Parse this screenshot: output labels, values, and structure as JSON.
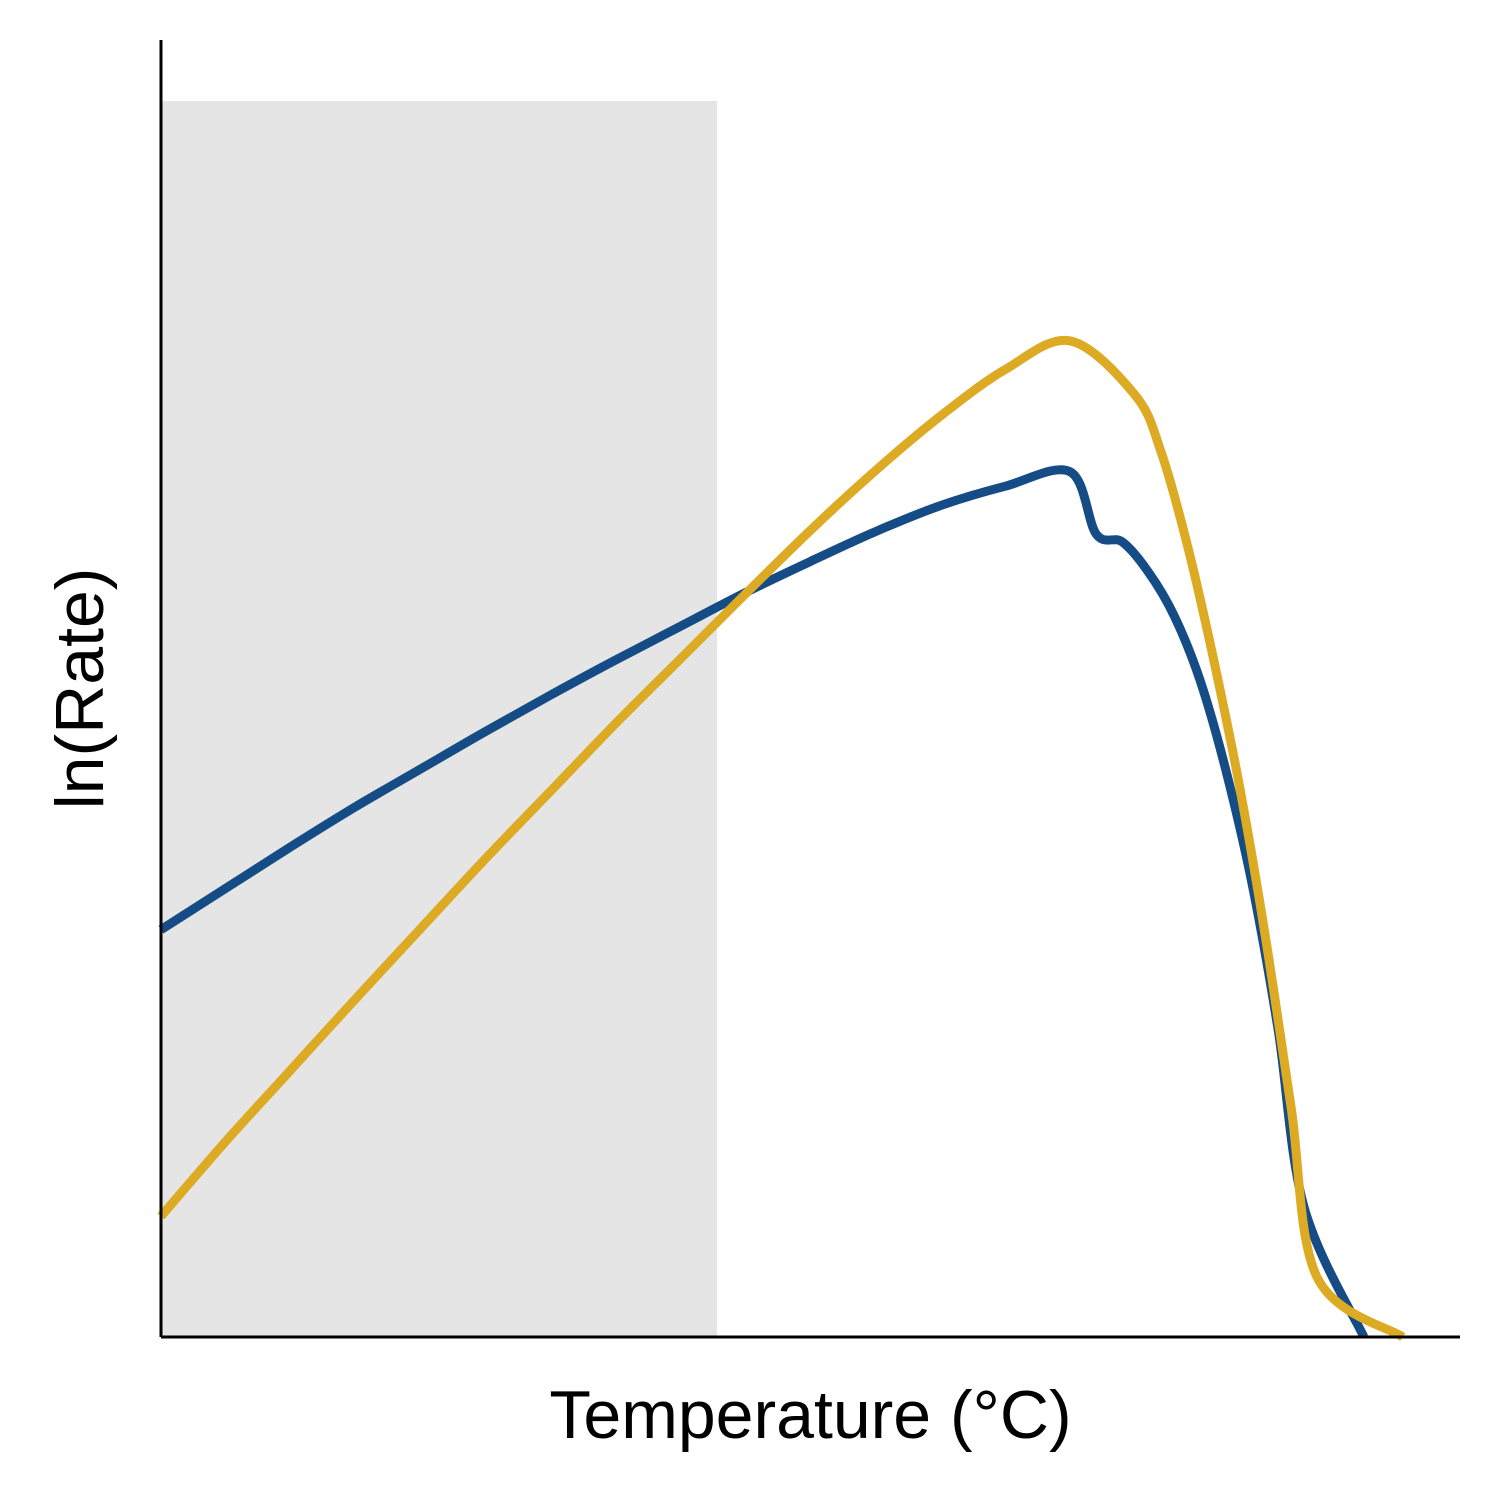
{
  "chart_data": {
    "type": "line",
    "title": "",
    "xlabel": "Temperature (°C)",
    "ylabel": "ln(Rate)",
    "xlim": [
      0,
      100
    ],
    "ylim": [
      0,
      100
    ],
    "grid": false,
    "legend": "none",
    "axis_ticks": "none",
    "shaded_region": {
      "x": [
        0,
        42.8
      ],
      "y": [
        0,
        95.3
      ],
      "color": "#e5e5e5"
    },
    "series": [
      {
        "color": "#154c85",
        "points": [
          [
            0,
            31.4
          ],
          [
            5,
            34.6
          ],
          [
            10,
            37.8
          ],
          [
            15,
            40.9
          ],
          [
            20,
            43.8
          ],
          [
            25,
            46.7
          ],
          [
            30,
            49.5
          ],
          [
            35,
            52.2
          ],
          [
            40,
            54.8
          ],
          [
            45,
            57.4
          ],
          [
            50,
            59.8
          ],
          [
            55,
            62.1
          ],
          [
            60,
            64.1
          ],
          [
            65,
            65.6
          ],
          [
            70,
            66.7
          ],
          [
            72,
            61.9
          ],
          [
            74,
            61.3
          ],
          [
            76,
            59.0
          ],
          [
            78,
            55.6
          ],
          [
            80,
            50.6
          ],
          [
            82,
            43.6
          ],
          [
            84,
            34.9
          ],
          [
            86,
            23.7
          ],
          [
            88,
            10.0
          ],
          [
            92.6,
            0
          ]
        ]
      },
      {
        "color": "#dcaa23",
        "points": [
          [
            0,
            9.3
          ],
          [
            5,
            15.1
          ],
          [
            10,
            20.6
          ],
          [
            15,
            26.1
          ],
          [
            20,
            31.5
          ],
          [
            25,
            36.9
          ],
          [
            30,
            42.1
          ],
          [
            35,
            47.3
          ],
          [
            40,
            52.3
          ],
          [
            45,
            57.3
          ],
          [
            50,
            62.2
          ],
          [
            55,
            66.8
          ],
          [
            60,
            71.0
          ],
          [
            65,
            74.6
          ],
          [
            70,
            76.8
          ],
          [
            75,
            72.6
          ],
          [
            77,
            68.2
          ],
          [
            79,
            61.1
          ],
          [
            81,
            52.4
          ],
          [
            83,
            42.6
          ],
          [
            85,
            31.0
          ],
          [
            87,
            17.7
          ],
          [
            89,
            4.6
          ],
          [
            95.6,
            0
          ]
        ]
      }
    ]
  }
}
